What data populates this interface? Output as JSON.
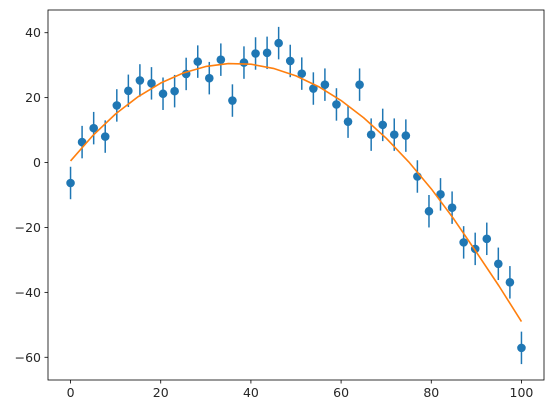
{
  "chart_data": {
    "type": "scatter",
    "title": "",
    "xlabel": "",
    "ylabel": "",
    "xlim": [
      -5,
      105
    ],
    "ylim": [
      -67,
      47
    ],
    "x_ticks": [
      0,
      20,
      40,
      60,
      80,
      100
    ],
    "y_ticks": [
      -60,
      -40,
      -20,
      0,
      20,
      40
    ],
    "x_tick_labels": [
      "0",
      "20",
      "40",
      "60",
      "80",
      "100"
    ],
    "y_tick_labels": [
      "−60",
      "−40",
      "−20",
      "0",
      "20",
      "40"
    ],
    "grid": false,
    "legend": "none",
    "series": [
      {
        "kind": "errorbar",
        "color": "#1f77b4",
        "yerr": 5,
        "x": [
          0.0,
          2.56,
          5.13,
          7.69,
          10.26,
          12.82,
          15.38,
          17.95,
          20.51,
          23.08,
          25.64,
          28.21,
          30.77,
          33.33,
          35.9,
          38.46,
          41.03,
          43.59,
          46.15,
          48.72,
          51.28,
          53.85,
          56.41,
          58.97,
          61.54,
          64.1,
          66.67,
          69.23,
          71.79,
          74.36,
          76.92,
          79.49,
          82.05,
          84.62,
          87.18,
          89.74,
          92.31,
          94.87,
          97.44,
          100.0
        ],
        "y": [
          -6.3,
          6.3,
          10.6,
          8.0,
          17.6,
          22.1,
          25.3,
          24.4,
          21.2,
          22.0,
          27.3,
          31.1,
          26.0,
          31.7,
          19.1,
          30.8,
          33.6,
          33.8,
          36.8,
          31.3,
          27.4,
          22.8,
          24.0,
          17.9,
          12.6,
          24.0,
          8.6,
          11.6,
          8.6,
          8.3,
          -4.3,
          -15.0,
          -9.8,
          -13.9,
          -24.6,
          -26.6,
          -23.5,
          -31.2,
          -36.9,
          -57.1
        ]
      },
      {
        "kind": "line",
        "color": "#ff7f0e",
        "x": [
          0,
          5,
          10,
          15,
          20,
          25,
          30,
          35,
          40,
          45,
          50,
          55,
          60,
          65,
          70,
          75,
          80,
          85,
          90,
          95,
          100
        ],
        "y": [
          0.5,
          8.4,
          15.0,
          20.3,
          24.5,
          27.6,
          29.6,
          30.5,
          30.3,
          29.0,
          26.7,
          23.4,
          19.1,
          13.8,
          7.5,
          0.2,
          -8.1,
          -17.4,
          -27.6,
          -38.0,
          -49.0
        ]
      }
    ]
  }
}
